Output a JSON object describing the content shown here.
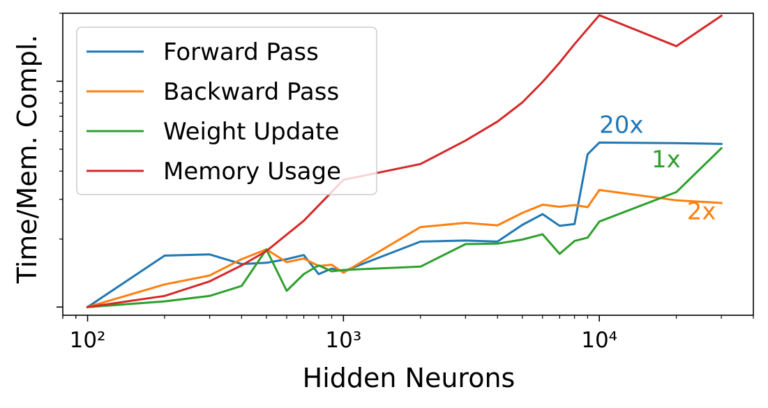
{
  "chart_data": {
    "type": "line",
    "xlabel": "Hidden Neurons",
    "ylabel": "Time/Mem. Compl.",
    "x_scale": "log",
    "y_scale": "log",
    "xlim": [
      80,
      40000
    ],
    "ylim": [
      0.92,
      20
    ],
    "x_ticks": [
      {
        "value": 100,
        "label": "10²"
      },
      {
        "value": 1000,
        "label": "10³"
      },
      {
        "value": 10000,
        "label": "10⁴"
      }
    ],
    "legend_position": "top-left",
    "series": [
      {
        "name": "Forward Pass",
        "color": "#1f77b4",
        "x": [
          100,
          200,
          300,
          400,
          500,
          600,
          700,
          800,
          900,
          1000,
          2000,
          3000,
          4000,
          5000,
          6000,
          7000,
          8000,
          9000,
          10000,
          20000,
          30000
        ],
        "y": [
          1.0,
          1.69,
          1.71,
          1.55,
          1.57,
          1.63,
          1.7,
          1.4,
          1.48,
          1.44,
          1.95,
          1.97,
          1.95,
          2.31,
          2.58,
          2.29,
          2.33,
          4.75,
          5.35,
          5.32,
          5.28
        ]
      },
      {
        "name": "Backward Pass",
        "color": "#ff7f0e",
        "x": [
          100,
          200,
          300,
          400,
          500,
          600,
          700,
          800,
          900,
          1000,
          2000,
          3000,
          4000,
          5000,
          6000,
          7000,
          8000,
          9000,
          10000,
          20000,
          30000
        ],
        "y": [
          1.0,
          1.26,
          1.38,
          1.63,
          1.8,
          1.58,
          1.64,
          1.52,
          1.54,
          1.42,
          2.26,
          2.36,
          2.3,
          2.61,
          2.84,
          2.78,
          2.83,
          2.77,
          3.3,
          2.97,
          2.89
        ]
      },
      {
        "name": "Weight Update",
        "color": "#2ca02c",
        "x": [
          100,
          200,
          300,
          400,
          500,
          600,
          700,
          800,
          900,
          1000,
          2000,
          3000,
          4000,
          5000,
          6000,
          7000,
          8000,
          9000,
          10000,
          20000,
          30000
        ],
        "y": [
          1.0,
          1.06,
          1.12,
          1.24,
          1.8,
          1.18,
          1.4,
          1.53,
          1.44,
          1.46,
          1.51,
          1.9,
          1.91,
          1.99,
          2.1,
          1.72,
          1.96,
          2.03,
          2.39,
          3.23,
          5.05
        ]
      },
      {
        "name": "Memory Usage",
        "color": "#d62728",
        "x": [
          100,
          200,
          300,
          400,
          500,
          700,
          1000,
          2000,
          3000,
          4000,
          5000,
          6000,
          7000,
          8000,
          10000,
          20000,
          30000
        ],
        "y": [
          1.0,
          1.12,
          1.3,
          1.53,
          1.77,
          2.41,
          3.66,
          4.3,
          5.46,
          6.63,
          8.05,
          9.93,
          12.1,
          14.6,
          19.6,
          14.3,
          19.5
        ]
      }
    ],
    "annotations": [
      {
        "text": "20x",
        "x": 10000,
        "y": 5.9,
        "color": "#1f77b4",
        "anchor": "start"
      },
      {
        "text": "1x",
        "x": 16000,
        "y": 4.15,
        "color": "#2ca02c",
        "anchor": "start"
      },
      {
        "text": "2x",
        "x": 22000,
        "y": 2.45,
        "color": "#ff7f0e",
        "anchor": "start"
      }
    ]
  }
}
